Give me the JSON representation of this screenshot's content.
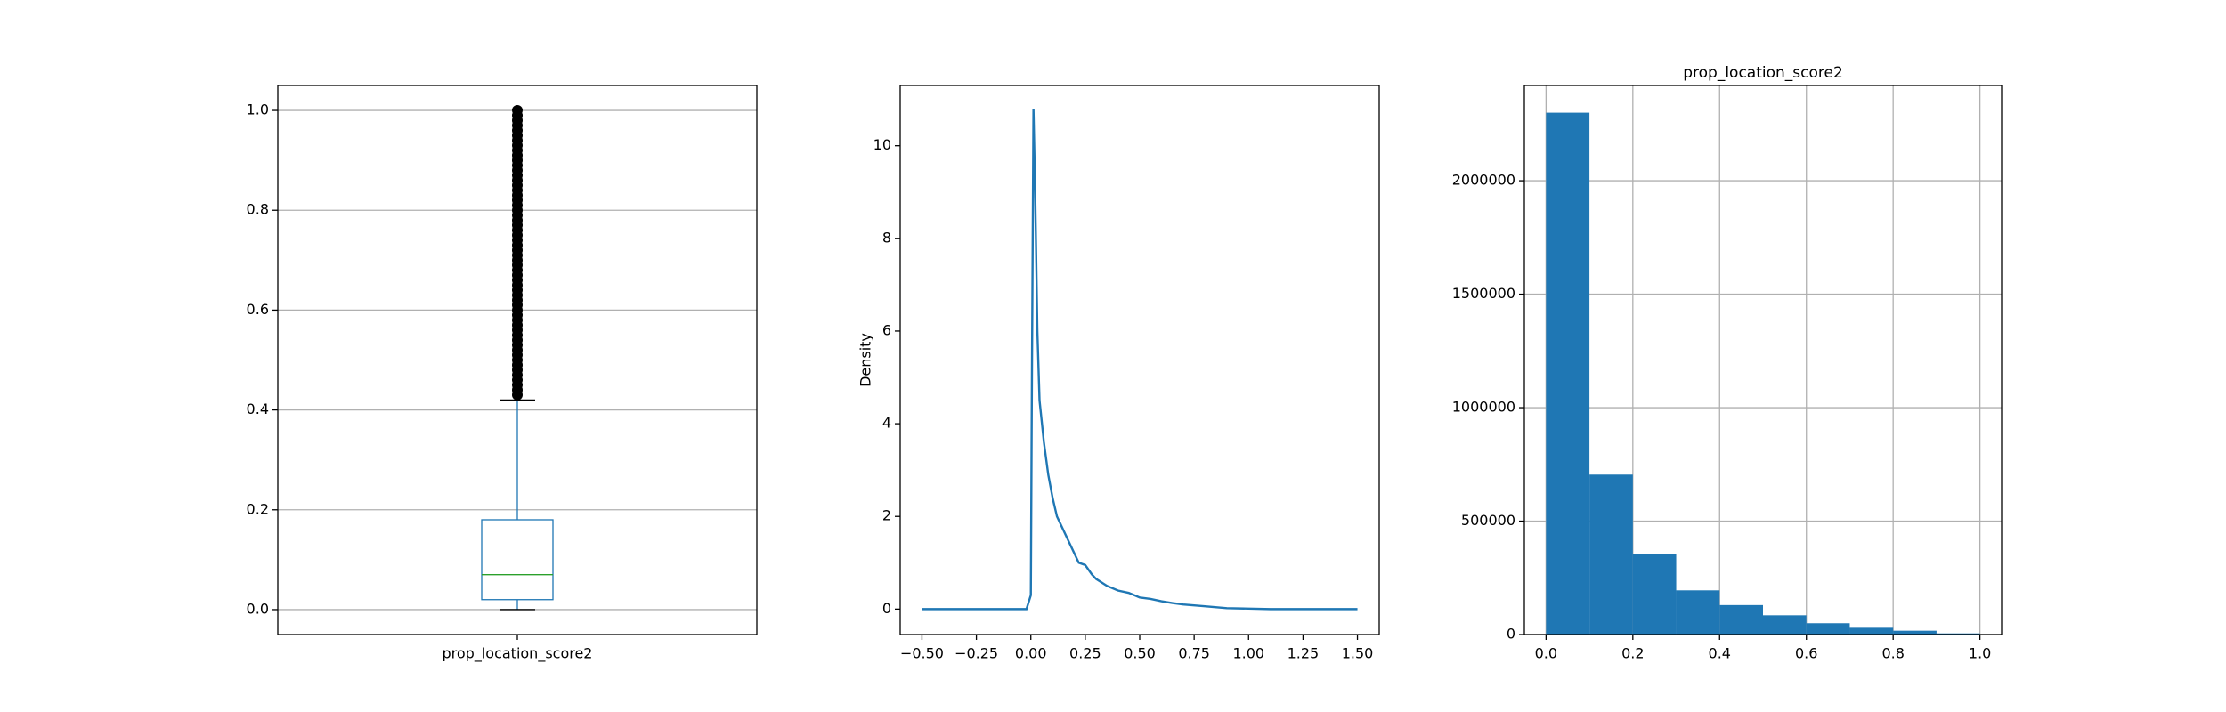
{
  "chart_data": [
    {
      "type": "box",
      "categories": [
        "prop_location_score2"
      ],
      "color": "#1f77b4",
      "median_color": "#2ca02c",
      "flier_color": "#000000",
      "whislo": 0.0,
      "q1": 0.02,
      "median": 0.07,
      "q3": 0.18,
      "whishi": 0.42,
      "fliers": [
        0.43,
        0.44,
        0.45,
        0.46,
        0.47,
        0.48,
        0.49,
        0.5,
        0.51,
        0.52,
        0.53,
        0.54,
        0.55,
        0.56,
        0.57,
        0.58,
        0.59,
        0.6,
        0.61,
        0.62,
        0.63,
        0.64,
        0.65,
        0.66,
        0.67,
        0.68,
        0.69,
        0.7,
        0.71,
        0.72,
        0.73,
        0.74,
        0.75,
        0.76,
        0.77,
        0.78,
        0.79,
        0.8,
        0.81,
        0.82,
        0.83,
        0.84,
        0.85,
        0.86,
        0.87,
        0.88,
        0.89,
        0.9,
        0.91,
        0.92,
        0.93,
        0.94,
        0.95,
        0.96,
        0.97,
        0.98,
        0.99,
        1.0
      ],
      "ylim": [
        -0.05,
        1.05
      ],
      "yticks": [
        {
          "value": 0,
          "label": "0.0"
        },
        0.2,
        0.4,
        0.6,
        0.8,
        {
          "value": 1,
          "label": "1.0"
        }
      ],
      "grid": "y"
    },
    {
      "type": "line",
      "ylabel": "Density",
      "color": "#1f77b4",
      "x": [
        -0.5,
        -0.02,
        0,
        0.005,
        0.012,
        0.02,
        0.03,
        0.04,
        0.06,
        0.08,
        0.1,
        0.12,
        0.15,
        0.18,
        0.2,
        0.22,
        0.25,
        0.28,
        0.3,
        0.35,
        0.4,
        0.45,
        0.5,
        0.55,
        0.6,
        0.65,
        0.7,
        0.8,
        0.9,
        1.0,
        1.1,
        1.5
      ],
      "values": [
        0,
        0,
        0.3,
        5,
        10.8,
        9,
        6,
        4.5,
        3.6,
        2.9,
        2.4,
        2.0,
        1.7,
        1.4,
        1.2,
        1.0,
        0.95,
        0.75,
        0.65,
        0.5,
        0.4,
        0.35,
        0.25,
        0.22,
        0.17,
        0.13,
        0.1,
        0.06,
        0.02,
        0.01,
        0,
        0
      ],
      "xlim": [
        -0.6,
        1.6
      ],
      "ylim": [
        -0.55,
        11.3
      ],
      "xticks": [
        {
          "value": -0.5,
          "label": "−0.50"
        },
        {
          "value": -0.25,
          "label": "−0.25"
        },
        {
          "value": 0,
          "label": "0.00"
        },
        0.25,
        {
          "value": 0.5,
          "label": "0.50"
        },
        0.75,
        {
          "value": 1,
          "label": "1.00"
        },
        1.25,
        {
          "value": 1.5,
          "label": "1.50"
        }
      ],
      "yticks": [
        0,
        2,
        4,
        6,
        8,
        10
      ],
      "grid": "none"
    },
    {
      "type": "histogram",
      "title": "prop_location_score2",
      "color": "#1f77b4",
      "bins": [
        0,
        0.1,
        0.2,
        0.3,
        0.4,
        0.5,
        0.6,
        0.7,
        0.8,
        0.9,
        1.0
      ],
      "values": [
        2300000,
        705000,
        355000,
        195000,
        130000,
        85000,
        50000,
        30000,
        17000,
        5000
      ],
      "xlim": [
        -0.05,
        1.05
      ],
      "ylim": [
        0,
        2420000
      ],
      "xticks": [
        {
          "value": 0,
          "label": "0.0"
        },
        0.2,
        0.4,
        0.6,
        0.8,
        {
          "value": 1,
          "label": "1.0"
        }
      ],
      "yticks": [
        0,
        500000,
        1000000,
        1500000,
        2000000
      ],
      "grid": "both"
    }
  ]
}
